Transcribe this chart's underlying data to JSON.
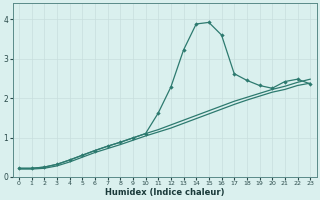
{
  "xlabel": "Humidex (Indice chaleur)",
  "bg_color": "#daf0ee",
  "grid_color": "#c8dedd",
  "line_color": "#2d7a6f",
  "xlim": [
    -0.5,
    23.5
  ],
  "ylim": [
    0,
    4.4
  ],
  "xticks": [
    0,
    1,
    2,
    3,
    4,
    5,
    6,
    7,
    8,
    9,
    10,
    11,
    12,
    13,
    14,
    15,
    16,
    17,
    18,
    19,
    20,
    21,
    22,
    23
  ],
  "yticks": [
    0,
    1,
    2,
    3,
    4
  ],
  "curve1_x": [
    0,
    1,
    2,
    3,
    4,
    5,
    6,
    7,
    8,
    9,
    10,
    11,
    12,
    13,
    14,
    15,
    16,
    17,
    18,
    19,
    20,
    21,
    22,
    23
  ],
  "curve1_y": [
    0.2,
    0.2,
    0.22,
    0.28,
    0.38,
    0.5,
    0.62,
    0.72,
    0.82,
    0.93,
    1.04,
    1.14,
    1.24,
    1.36,
    1.48,
    1.6,
    1.72,
    1.84,
    1.95,
    2.05,
    2.15,
    2.22,
    2.32,
    2.38
  ],
  "curve2_x": [
    0,
    1,
    2,
    3,
    4,
    5,
    6,
    7,
    8,
    9,
    10,
    11,
    12,
    13,
    14,
    15,
    16,
    17,
    18,
    19,
    20,
    21,
    22,
    23
  ],
  "curve2_y": [
    0.22,
    0.22,
    0.25,
    0.32,
    0.43,
    0.55,
    0.67,
    0.78,
    0.88,
    0.99,
    1.1,
    1.2,
    1.32,
    1.44,
    1.56,
    1.68,
    1.8,
    1.92,
    2.02,
    2.12,
    2.22,
    2.3,
    2.4,
    2.48
  ],
  "curve3_x": [
    0,
    1,
    2,
    3,
    4,
    5,
    6,
    7,
    8,
    9,
    10,
    11,
    12,
    13,
    14,
    15,
    16,
    17,
    18,
    19,
    20,
    21,
    22,
    23
  ],
  "curve3_y": [
    0.22,
    0.22,
    0.25,
    0.32,
    0.43,
    0.55,
    0.67,
    0.78,
    0.88,
    0.99,
    1.1,
    1.62,
    2.28,
    3.22,
    3.88,
    3.92,
    3.6,
    2.62,
    2.45,
    2.32,
    2.25,
    2.42,
    2.48,
    2.36
  ]
}
